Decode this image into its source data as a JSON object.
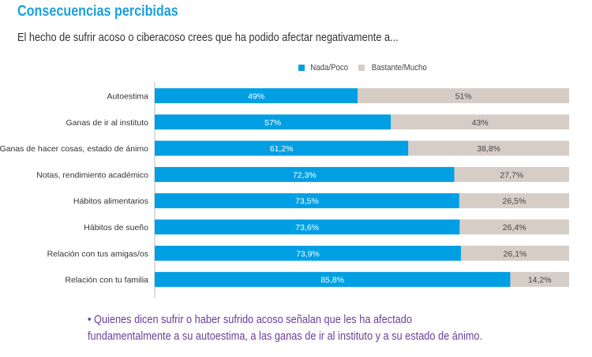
{
  "title": "Consecuencias percibidas",
  "subtitle": "El hecho de sufrir acoso o ciberacoso crees que ha podido afectar negativamente a...",
  "note": "• Quienes dicen sufrir o haber sufrido acoso señalan que les ha afectado",
  "note2": "fundamentalmente a su autoestima, a las ganas de ir al instituto y a su estado de ánimo.",
  "chart_data": {
    "type": "bar",
    "orientation": "horizontal",
    "stacked": true,
    "categories": [
      "Autoestima",
      "Ganas de ir al instituto",
      "Ganas de hacer cosas, estado de ánimo",
      "Notas, rendimiento académico",
      "Hábitos alimentarios",
      "Hábitos de sueño",
      "Relación con tus amigas/os",
      "Relación con tu familia"
    ],
    "series": [
      {
        "name": "Nada/Poco",
        "color": "#009fe3",
        "values": [
          49,
          57,
          61.2,
          72.3,
          73.5,
          73.6,
          73.9,
          85.8
        ],
        "labels": [
          "49%",
          "57%",
          "61,2%",
          "72,3%",
          "73,5%",
          "73,6%",
          "73,9%",
          "85,8%"
        ]
      },
      {
        "name": "Bastante/Mucho",
        "color": "#d6cdc6",
        "values": [
          51,
          43,
          38.8,
          27.7,
          26.5,
          26.4,
          26.1,
          14.2
        ],
        "labels": [
          "51%",
          "43%",
          "38,8%",
          "27,7%",
          "26,5%",
          "26,4%",
          "26,1%",
          "14,2%"
        ]
      }
    ],
    "xlim": [
      0,
      100
    ],
    "legend": "top"
  }
}
